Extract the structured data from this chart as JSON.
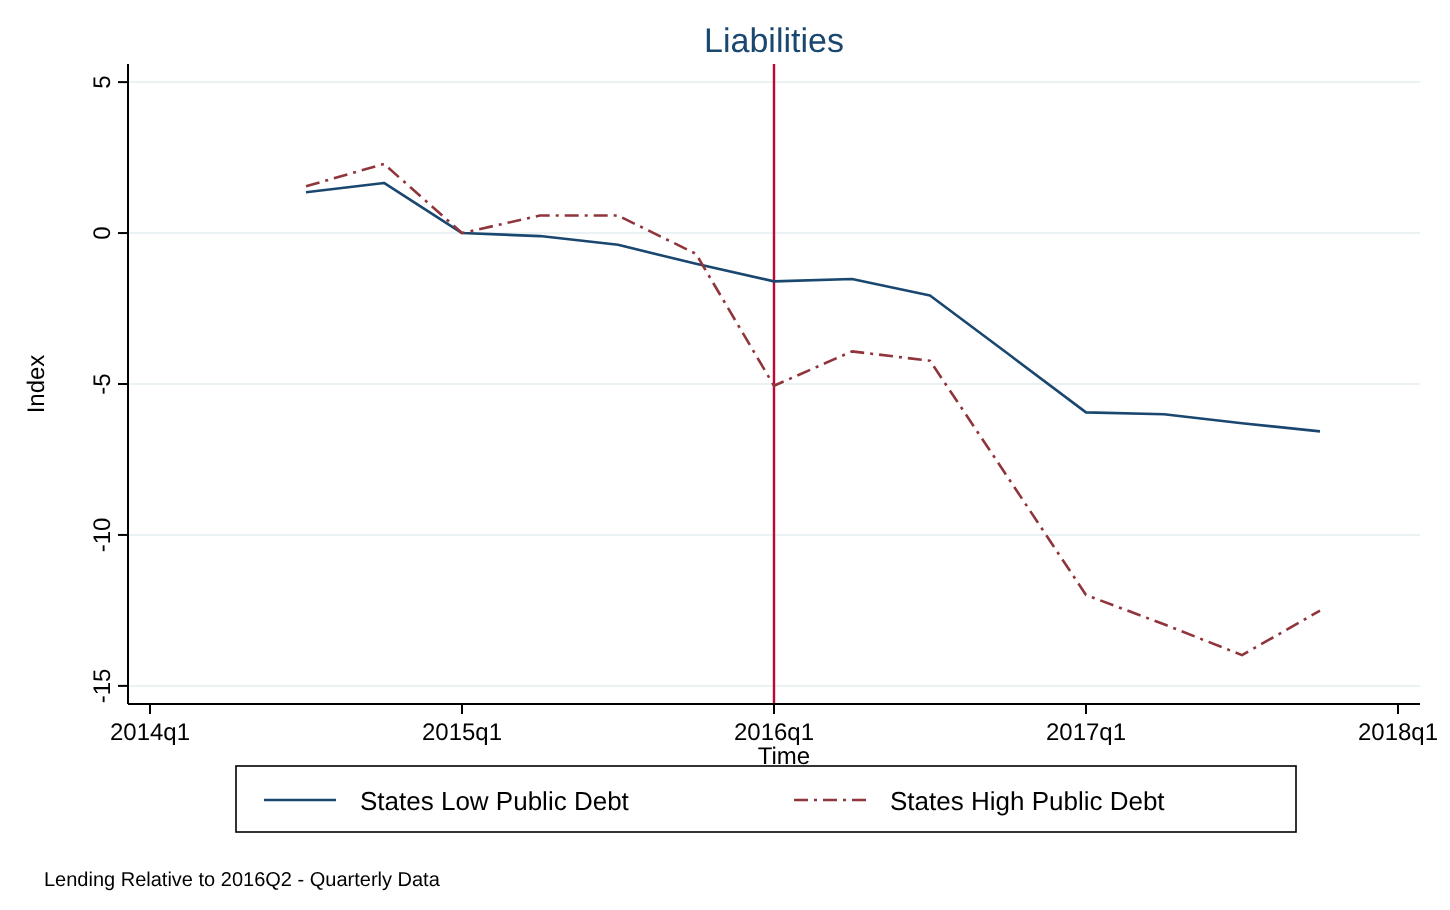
{
  "chart_data": {
    "type": "line",
    "title": "Liabilities",
    "xlabel": "Time",
    "ylabel": "Index",
    "categories": [
      "2014q1",
      null,
      null,
      null,
      "2015q1",
      null,
      null,
      null,
      "2016q1",
      null,
      null,
      null,
      "2017q1",
      null,
      null,
      null,
      "2018q1"
    ],
    "series": [
      {
        "name": "States Low Public Debt",
        "color": "#1a476f",
        "line_style": "solid",
        "values": [
          null,
          null,
          1.35,
          1.66,
          0,
          -0.1,
          -0.39,
          -1.02,
          -1.6,
          -1.52,
          -2.07,
          -4.0,
          -5.94,
          -6.0,
          -6.3,
          -6.57,
          null
        ]
      },
      {
        "name": "States High Public Debt",
        "color": "#90353b",
        "line_style": "dashdot",
        "values": [
          null,
          null,
          1.55,
          2.29,
          0,
          0.58,
          0.58,
          -0.69,
          -5.06,
          -3.92,
          -4.23,
          -8.1,
          -11.99,
          -12.96,
          -13.98,
          -12.51,
          null
        ]
      }
    ],
    "ylim": [
      -15.6,
      5.6
    ],
    "yticks": [
      -15,
      -10,
      -5,
      0,
      5
    ],
    "grid": "y",
    "legend": "bottom",
    "ref_lines": [
      {
        "axis": "x",
        "value": "2016q1",
        "color": "#c10534"
      }
    ],
    "annotations": [
      "Lending Relative to 2016Q2 - Quarterly Data"
    ]
  }
}
